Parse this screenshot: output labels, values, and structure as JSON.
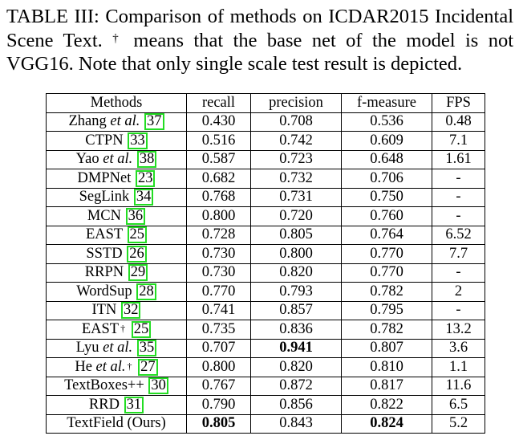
{
  "caption": {
    "label": "TABLE III:",
    "text": "Comparison of methods on ICDAR2015 Incidental Scene Text.",
    "dagger": "†",
    "note": "means that the base net of the model is not VGG16. Note that only single scale test result is depicted."
  },
  "table": {
    "headers": [
      "Methods",
      "recall",
      "precision",
      "f-measure",
      "FPS"
    ],
    "rows": [
      {
        "name": "Zhang",
        "etal": "et al.",
        "dagger": "",
        "ref": "37",
        "recall": "0.430",
        "precision": "0.708",
        "fmeasure": "0.536",
        "fps": "0.48",
        "bold": []
      },
      {
        "name": "CTPN",
        "etal": "",
        "dagger": "",
        "ref": "33",
        "recall": "0.516",
        "precision": "0.742",
        "fmeasure": "0.609",
        "fps": "7.1",
        "bold": []
      },
      {
        "name": "Yao",
        "etal": "et al.",
        "dagger": "",
        "ref": "38",
        "recall": "0.587",
        "precision": "0.723",
        "fmeasure": "0.648",
        "fps": "1.61",
        "bold": []
      },
      {
        "name": "DMPNet",
        "etal": "",
        "dagger": "",
        "ref": "23",
        "recall": "0.682",
        "precision": "0.732",
        "fmeasure": "0.706",
        "fps": "-",
        "bold": []
      },
      {
        "name": "SegLink",
        "etal": "",
        "dagger": "",
        "ref": "34",
        "recall": "0.768",
        "precision": "0.731",
        "fmeasure": "0.750",
        "fps": "-",
        "bold": []
      },
      {
        "name": "MCN",
        "etal": "",
        "dagger": "",
        "ref": "36",
        "recall": "0.800",
        "precision": "0.720",
        "fmeasure": "0.760",
        "fps": "-",
        "bold": []
      },
      {
        "name": "EAST",
        "etal": "",
        "dagger": "",
        "ref": "25",
        "recall": "0.728",
        "precision": "0.805",
        "fmeasure": "0.764",
        "fps": "6.52",
        "bold": []
      },
      {
        "name": "SSTD",
        "etal": "",
        "dagger": "",
        "ref": "26",
        "recall": "0.730",
        "precision": "0.800",
        "fmeasure": "0.770",
        "fps": "7.7",
        "bold": []
      },
      {
        "name": "RRPN",
        "etal": "",
        "dagger": "",
        "ref": "29",
        "recall": "0.730",
        "precision": "0.820",
        "fmeasure": "0.770",
        "fps": "-",
        "bold": []
      },
      {
        "name": "WordSup",
        "etal": "",
        "dagger": "",
        "ref": "28",
        "recall": "0.770",
        "precision": "0.793",
        "fmeasure": "0.782",
        "fps": "2",
        "bold": []
      },
      {
        "name": "ITN",
        "etal": "",
        "dagger": "",
        "ref": "32",
        "recall": "0.741",
        "precision": "0.857",
        "fmeasure": "0.795",
        "fps": "-",
        "bold": []
      },
      {
        "name": "EAST",
        "etal": "",
        "dagger": "†",
        "ref": "25",
        "recall": "0.735",
        "precision": "0.836",
        "fmeasure": "0.782",
        "fps": "13.2",
        "bold": []
      },
      {
        "name": "Lyu",
        "etal": "et al.",
        "dagger": "",
        "ref": "35",
        "recall": "0.707",
        "precision": "0.941",
        "fmeasure": "0.807",
        "fps": "3.6",
        "bold": [
          "precision"
        ]
      },
      {
        "name": "He",
        "etal": "et al.",
        "dagger": "†",
        "ref": "27",
        "recall": "0.800",
        "precision": "0.820",
        "fmeasure": "0.810",
        "fps": "1.1",
        "bold": []
      },
      {
        "name": "TextBoxes++",
        "etal": "",
        "dagger": "",
        "ref": "30",
        "recall": "0.767",
        "precision": "0.872",
        "fmeasure": "0.817",
        "fps": "11.6",
        "bold": []
      },
      {
        "name": "RRD",
        "etal": "",
        "dagger": "",
        "ref": "31",
        "recall": "0.790",
        "precision": "0.856",
        "fmeasure": "0.822",
        "fps": "6.5",
        "bold": []
      },
      {
        "name": "TextField (Ours)",
        "etal": "",
        "dagger": "",
        "ref": "",
        "recall": "0.805",
        "precision": "0.843",
        "fmeasure": "0.824",
        "fps": "5.2",
        "bold": [
          "recall",
          "fmeasure"
        ]
      }
    ]
  },
  "colors": {
    "reference_box": "#22dd22"
  }
}
